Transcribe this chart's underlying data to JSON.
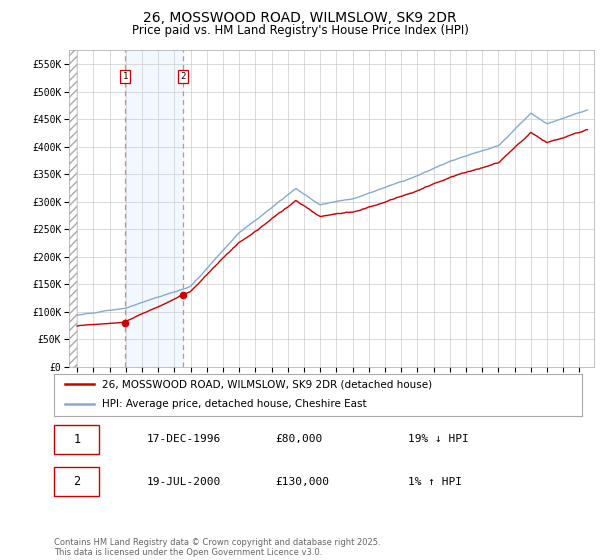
{
  "title": "26, MOSSWOOD ROAD, WILMSLOW, SK9 2DR",
  "subtitle": "Price paid vs. HM Land Registry's House Price Index (HPI)",
  "ylim": [
    0,
    575000
  ],
  "yticks": [
    0,
    50000,
    100000,
    150000,
    200000,
    250000,
    300000,
    350000,
    400000,
    450000,
    500000,
    550000
  ],
  "ytick_labels": [
    "£0",
    "£50K",
    "£100K",
    "£150K",
    "£200K",
    "£250K",
    "£300K",
    "£350K",
    "£400K",
    "£450K",
    "£500K",
    "£550K"
  ],
  "sale1_date_num": 1996.96,
  "sale1_price": 80000,
  "sale2_date_num": 2000.55,
  "sale2_price": 130000,
  "line_color_red": "#cc0000",
  "line_color_blue": "#88aacc",
  "vline_color": "#dd8888",
  "shade_color": "#ddeeff",
  "legend_label_red": "26, MOSSWOOD ROAD, WILMSLOW, SK9 2DR (detached house)",
  "legend_label_blue": "HPI: Average price, detached house, Cheshire East",
  "table_row1": [
    "1",
    "17-DEC-1996",
    "£80,000",
    "19% ↓ HPI"
  ],
  "table_row2": [
    "2",
    "19-JUL-2000",
    "£130,000",
    "1% ↑ HPI"
  ],
  "footer": "Contains HM Land Registry data © Crown copyright and database right 2025.\nThis data is licensed under the Open Government Licence v3.0.",
  "background_color": "#ffffff",
  "grid_color": "#cccccc",
  "title_fontsize": 10,
  "subtitle_fontsize": 8.5,
  "tick_fontsize": 7,
  "legend_fontsize": 7.5,
  "table_fontsize": 8,
  "footer_fontsize": 6
}
